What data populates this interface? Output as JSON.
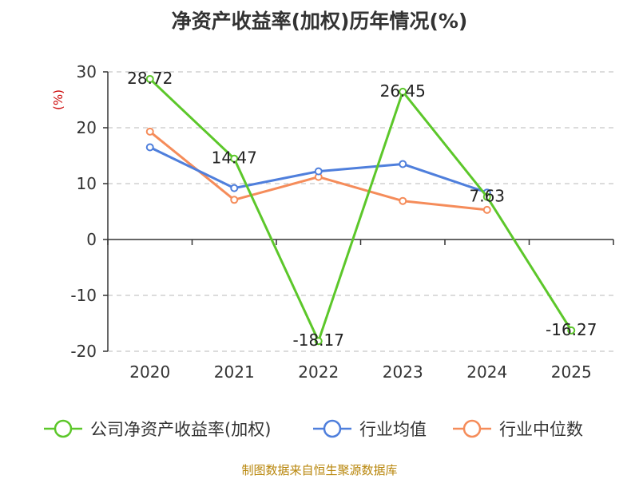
{
  "chart_data": {
    "type": "line",
    "title": "净资产收益率(加权)历年情况(%)",
    "ylabel": "(%)",
    "xlabel": "",
    "categories": [
      "2020",
      "2021",
      "2022",
      "2023",
      "2024",
      "2025"
    ],
    "ylim": [
      -20,
      30
    ],
    "yticks": [
      30,
      20,
      10,
      0,
      -10,
      -20
    ],
    "grid": true,
    "legend_position": "bottom",
    "series": [
      {
        "name": "公司净资产收益率(加权)",
        "color": "#5cc72a",
        "values": [
          28.72,
          14.47,
          -18.17,
          26.45,
          7.63,
          -16.27
        ],
        "labels": [
          "28.72",
          "14.47",
          "-18.17",
          "26.45",
          "7.63",
          "-16.27"
        ]
      },
      {
        "name": "行业均值",
        "color": "#4f7fdc",
        "values": [
          16.5,
          9.2,
          12.2,
          13.5,
          8.4,
          null
        ],
        "labels": []
      },
      {
        "name": "行业中位数",
        "color": "#f58c5a",
        "values": [
          19.3,
          7.1,
          11.2,
          6.9,
          5.3,
          null
        ],
        "labels": []
      }
    ]
  },
  "source": "制图数据来自恒生聚源数据库"
}
